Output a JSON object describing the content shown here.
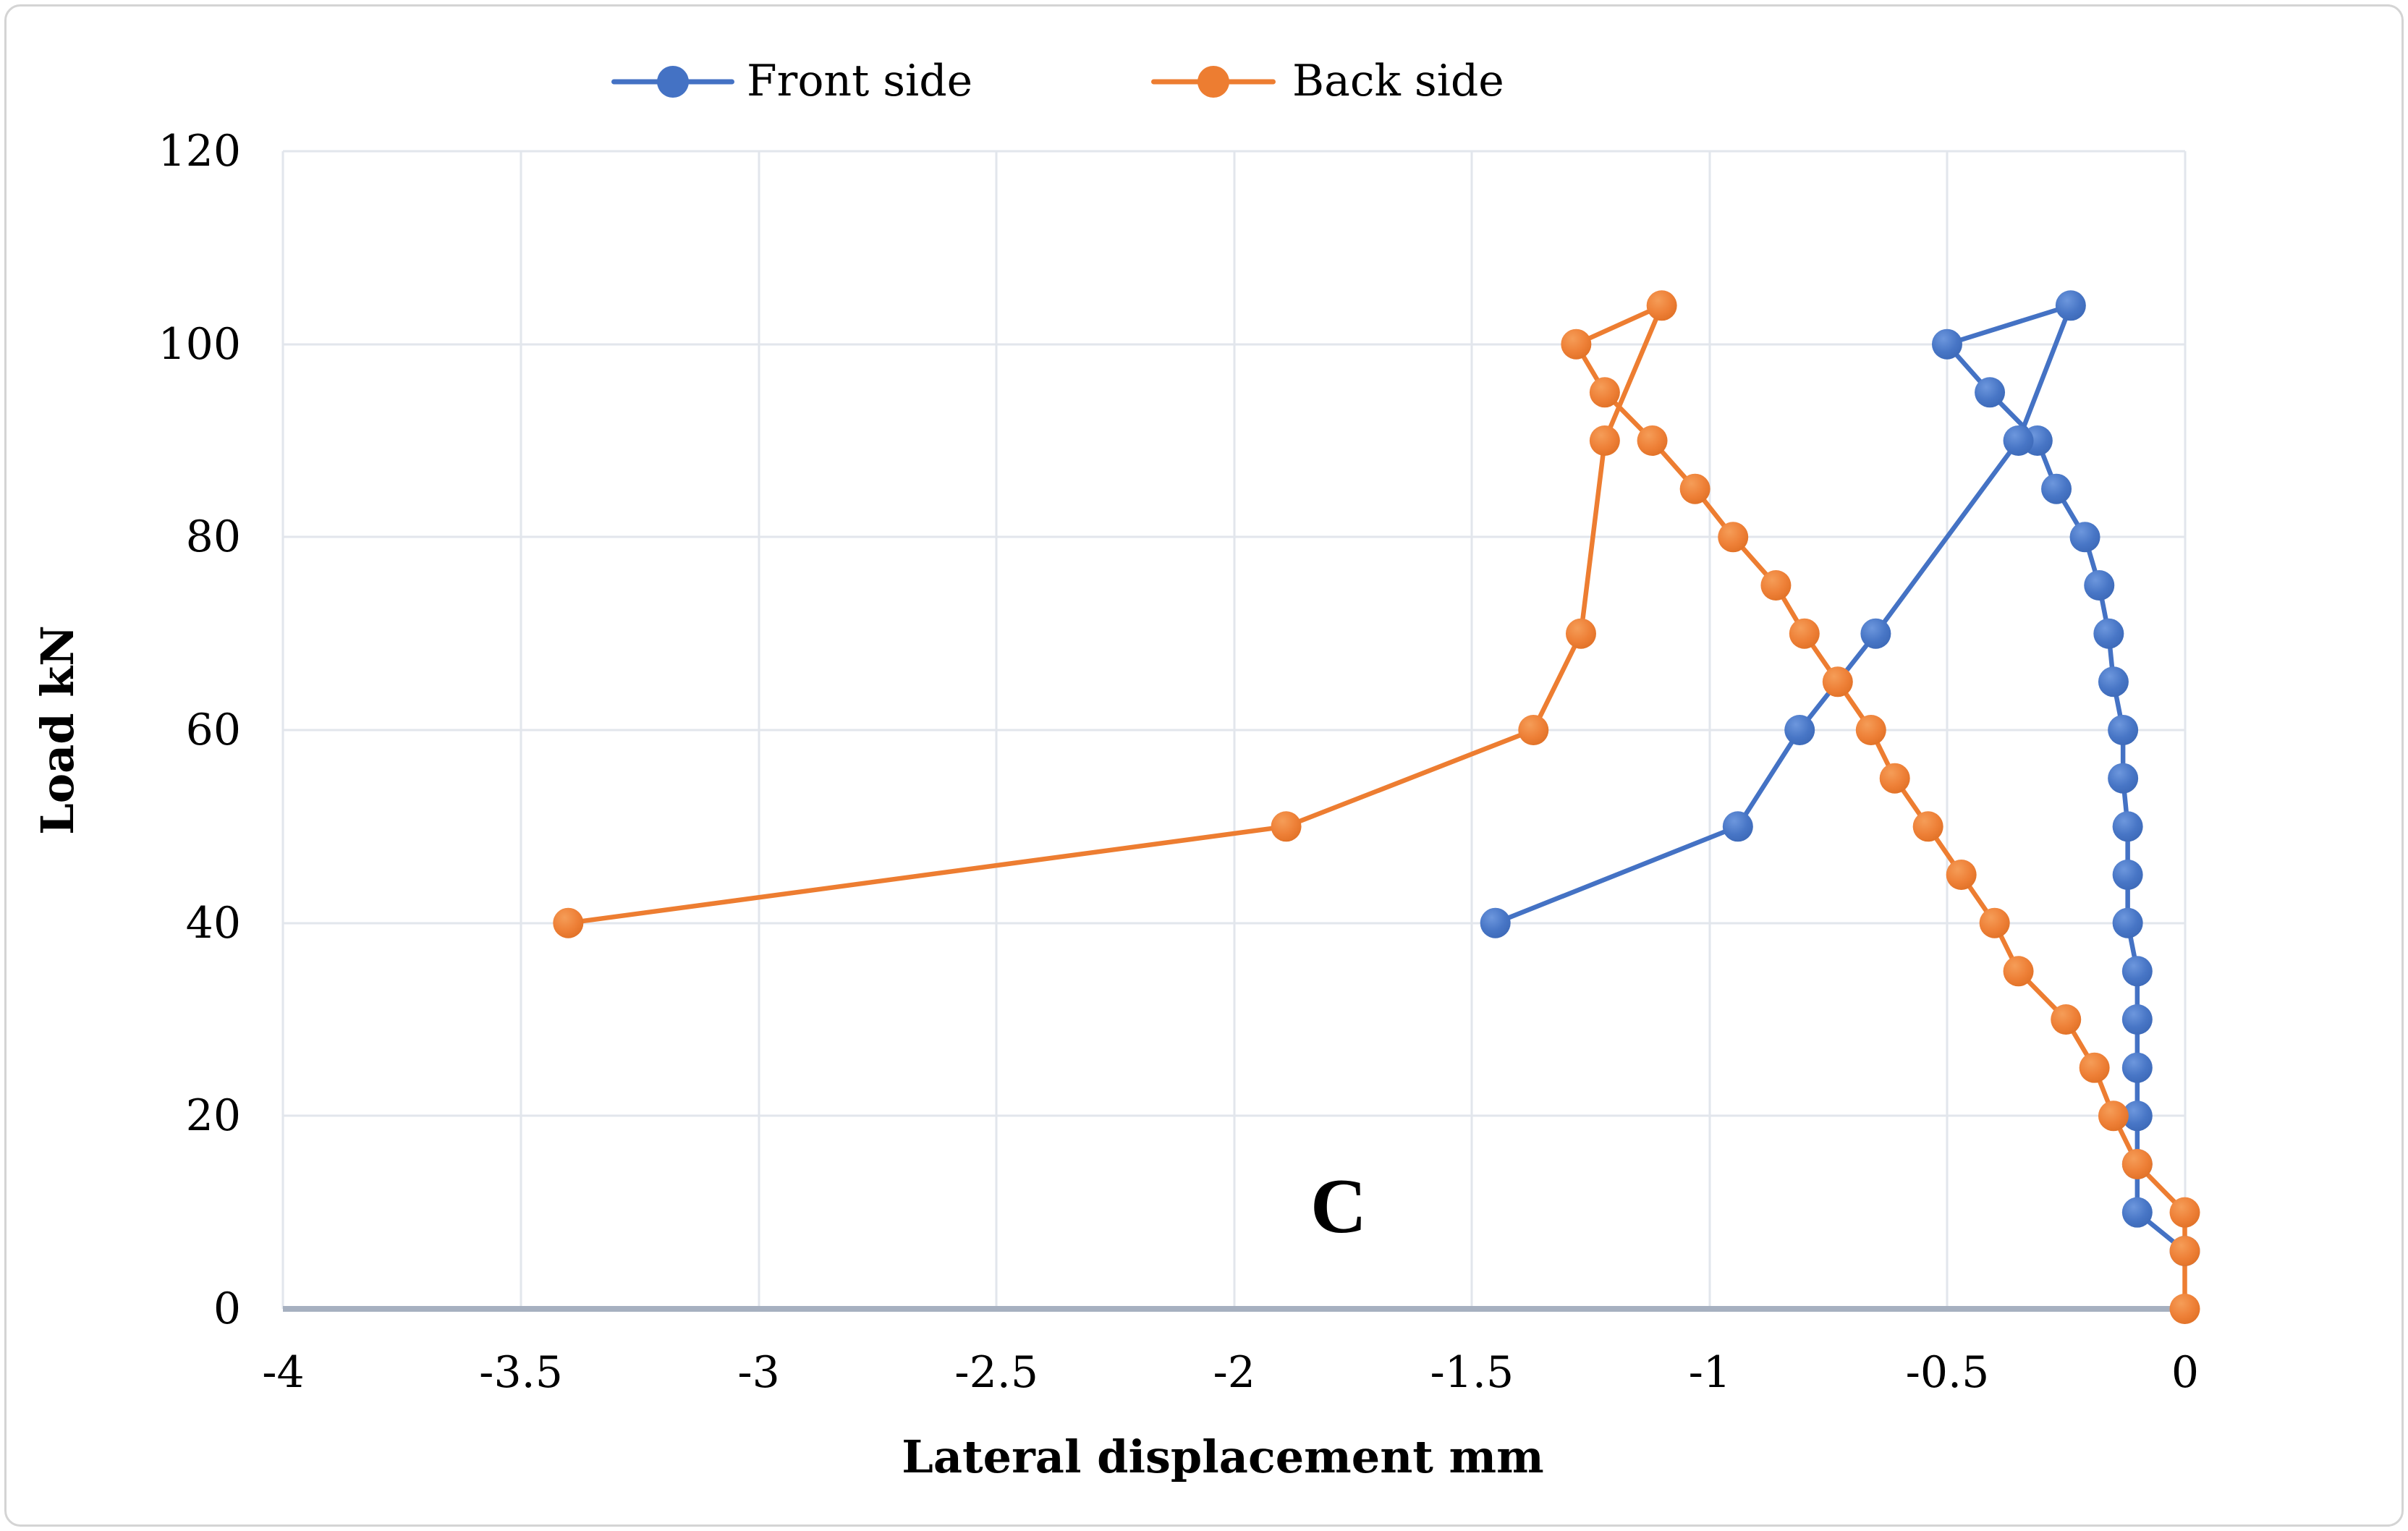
{
  "legend": [
    {
      "label": "Front side",
      "color": "#4472C4"
    },
    {
      "label": "Back side",
      "color": "#ED7D31"
    }
  ],
  "annotation": "C",
  "axes": {
    "x": {
      "title": "Lateral displacement mm",
      "ticks": [
        "-4",
        "-3.5",
        "-3",
        "-2.5",
        "-2",
        "-1.5",
        "-1",
        "-0.5",
        "0"
      ],
      "min": -4,
      "max": 0
    },
    "y": {
      "title": "Load kN",
      "ticks": [
        "0",
        "20",
        "40",
        "60",
        "80",
        "100",
        "120"
      ],
      "min": 0,
      "max": 120
    }
  },
  "chart_data": {
    "type": "line",
    "title": "",
    "xlabel": "Lateral displacement mm",
    "ylabel": "Load kN",
    "xlim": [
      -4,
      0
    ],
    "ylim": [
      0,
      120
    ],
    "grid": true,
    "legend_position": "top-center",
    "annotation": {
      "text": "C",
      "x": -1.78,
      "y": 10.5
    },
    "series": [
      {
        "name": "Front side",
        "color": "#4472C4",
        "points": [
          [
            0,
            6
          ],
          [
            -0.1,
            10
          ],
          [
            -0.1,
            15
          ],
          [
            -0.1,
            20
          ],
          [
            -0.1,
            25
          ],
          [
            -0.1,
            30
          ],
          [
            -0.1,
            35
          ],
          [
            -0.12,
            40
          ],
          [
            -0.12,
            45
          ],
          [
            -0.12,
            50
          ],
          [
            -0.13,
            55
          ],
          [
            -0.13,
            60
          ],
          [
            -0.15,
            65
          ],
          [
            -0.16,
            70
          ],
          [
            -0.18,
            75
          ],
          [
            -0.21,
            80
          ],
          [
            -0.27,
            85
          ],
          [
            -0.31,
            90
          ],
          [
            -0.41,
            95
          ],
          [
            -0.5,
            100
          ],
          [
            -0.24,
            104
          ],
          [
            -0.35,
            90
          ],
          [
            -0.65,
            70
          ],
          [
            -0.81,
            60
          ],
          [
            -0.94,
            50
          ],
          [
            -1.45,
            40
          ]
        ]
      },
      {
        "name": "Back side",
        "color": "#ED7D31",
        "points": [
          [
            0,
            0
          ],
          [
            0,
            6
          ],
          [
            0,
            10
          ],
          [
            -0.1,
            15
          ],
          [
            -0.15,
            20
          ],
          [
            -0.19,
            25
          ],
          [
            -0.25,
            30
          ],
          [
            -0.35,
            35
          ],
          [
            -0.4,
            40
          ],
          [
            -0.47,
            45
          ],
          [
            -0.54,
            50
          ],
          [
            -0.61,
            55
          ],
          [
            -0.66,
            60
          ],
          [
            -0.73,
            65
          ],
          [
            -0.8,
            70
          ],
          [
            -0.86,
            75
          ],
          [
            -0.95,
            80
          ],
          [
            -1.03,
            85
          ],
          [
            -1.12,
            90
          ],
          [
            -1.22,
            95
          ],
          [
            -1.28,
            100
          ],
          [
            -1.1,
            104
          ],
          [
            -1.22,
            90
          ],
          [
            -1.27,
            70
          ],
          [
            -1.37,
            60
          ],
          [
            -1.89,
            50
          ],
          [
            -3.4,
            40
          ]
        ]
      }
    ]
  }
}
